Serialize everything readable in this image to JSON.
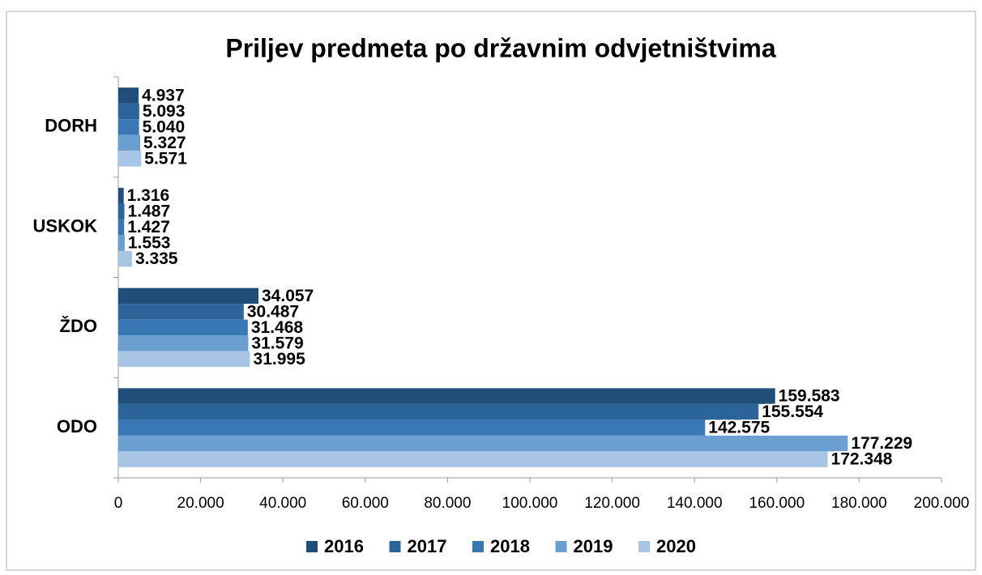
{
  "chart_data": {
    "type": "hbar",
    "title": "Priljev predmeta po državnim odvjetništvima",
    "categories": [
      "DORH",
      "USKOK",
      "ŽDO",
      "ODO"
    ],
    "series": [
      {
        "name": "2016",
        "color": "#1f4e79",
        "values": [
          4937,
          1316,
          34057,
          159583
        ],
        "value_labels": [
          "4.937",
          "1.316",
          "34.057",
          "159.583"
        ]
      },
      {
        "name": "2017",
        "color": "#2b6498",
        "values": [
          5093,
          1487,
          30487,
          155554
        ],
        "value_labels": [
          "5.093",
          "1.487",
          "30.487",
          "155.554"
        ]
      },
      {
        "name": "2018",
        "color": "#3a78b5",
        "values": [
          5040,
          1427,
          31468,
          142575
        ],
        "value_labels": [
          "5.040",
          "1.427",
          "31.468",
          "142.575"
        ]
      },
      {
        "name": "2019",
        "color": "#6b9fd0",
        "values": [
          5327,
          1553,
          31579,
          177229
        ],
        "value_labels": [
          "5.327",
          "1.553",
          "31.579",
          "177.229"
        ]
      },
      {
        "name": "2020",
        "color": "#a8c5e6",
        "values": [
          5571,
          3335,
          31995,
          172348
        ],
        "value_labels": [
          "5.571",
          "3.335",
          "31.995",
          "172.348"
        ]
      }
    ],
    "xlim": [
      0,
      200000
    ],
    "xticks": [
      0,
      {
        "value": 20000,
        "label": "20.000"
      },
      {
        "value": 40000,
        "label": "40.000"
      },
      {
        "value": 60000,
        "label": "60.000"
      },
      {
        "value": 80000,
        "label": "80.000"
      },
      {
        "value": 100000,
        "label": "100.000"
      },
      {
        "value": 120000,
        "label": "120.000"
      },
      {
        "value": 140000,
        "label": "140.000"
      },
      {
        "value": 160000,
        "label": "160.000"
      },
      {
        "value": 180000,
        "label": "180.000"
      },
      {
        "value": 200000,
        "label": "200.000"
      }
    ],
    "legend": "bottom"
  }
}
